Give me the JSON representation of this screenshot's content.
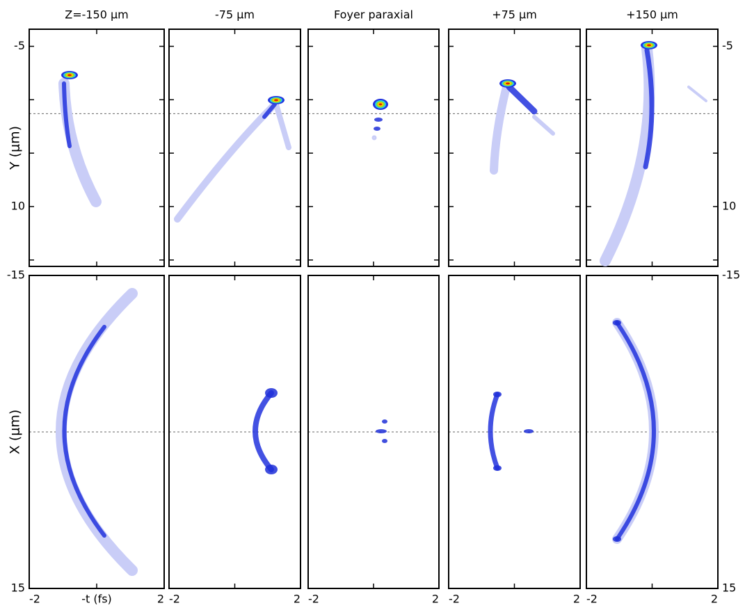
{
  "columns": [
    "Z=-150 μm",
    "-75 μm",
    "Foyer paraxial",
    "+75 μm",
    "+150 μm"
  ],
  "top": {
    "ylabel": "Y (μm)",
    "ylim": [
      -6.6,
      15.6
    ],
    "yticks": [
      -5,
      10
    ],
    "minor_yticks": [
      0,
      5,
      15
    ],
    "reference_line": 1.3
  },
  "bottom": {
    "ylabel": "X (μm)",
    "ylim": [
      -15,
      15
    ],
    "yticks": [
      -15,
      15
    ],
    "reference_line": 0
  },
  "x_axis": {
    "label": "-t (fs)",
    "xlim": [
      -2,
      2
    ],
    "xticks": [
      -2,
      2
    ],
    "minor_xticks": [
      0
    ]
  }
}
